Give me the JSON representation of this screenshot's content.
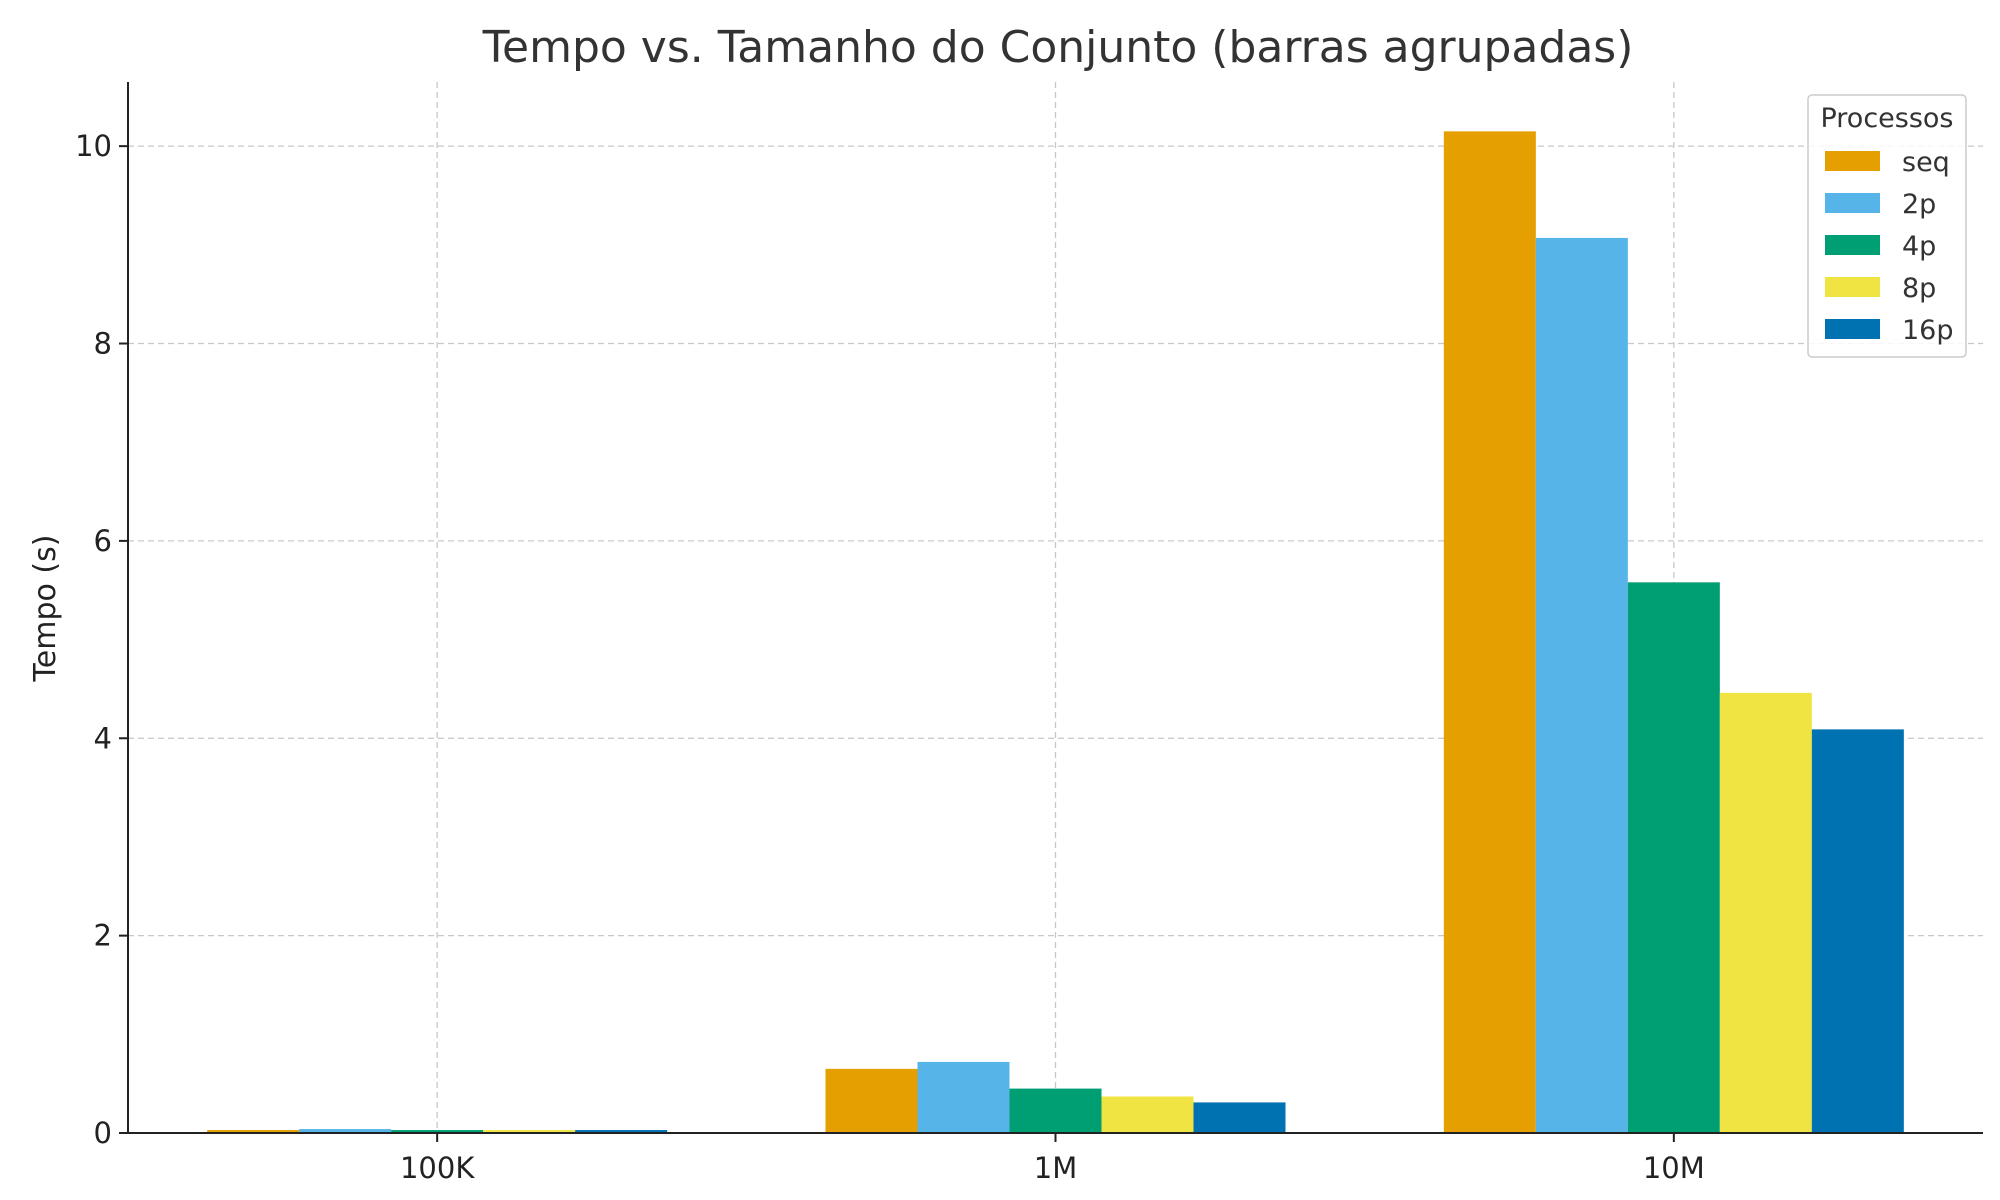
{
  "chart_data": {
    "type": "bar",
    "title": "Tempo vs. Tamanho do Conjunto (barras agrupadas)",
    "xlabel": "",
    "ylabel": "Tempo (s)",
    "categories": [
      "100K",
      "1M",
      "10M"
    ],
    "ylim": [
      0,
      10.65
    ],
    "yticks": [
      0,
      2,
      4,
      6,
      8,
      10
    ],
    "grid": true,
    "legend": {
      "title": "Processos",
      "position": "top-right"
    },
    "series": [
      {
        "name": "seq",
        "color": "#E69F00",
        "values": [
          0.03,
          0.65,
          10.15
        ]
      },
      {
        "name": "2p",
        "color": "#56B4E9",
        "values": [
          0.04,
          0.72,
          9.07
        ]
      },
      {
        "name": "4p",
        "color": "#009E73",
        "values": [
          0.03,
          0.45,
          5.58
        ]
      },
      {
        "name": "8p",
        "color": "#F0E442",
        "values": [
          0.03,
          0.37,
          4.46
        ]
      },
      {
        "name": "16p",
        "color": "#0072B2",
        "values": [
          0.03,
          0.31,
          4.09
        ]
      }
    ]
  }
}
